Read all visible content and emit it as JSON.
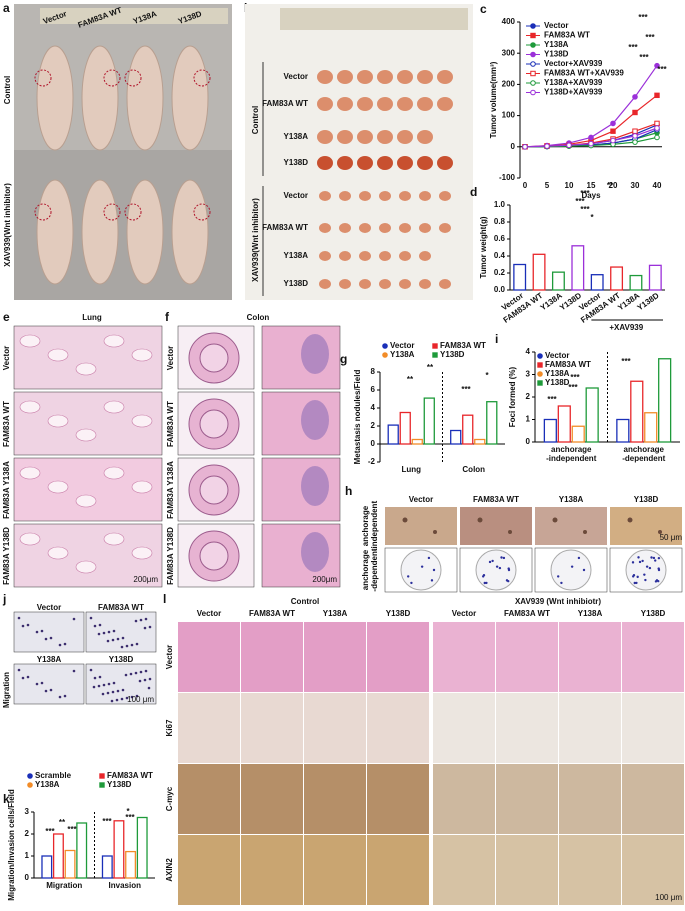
{
  "figure": {
    "a": {
      "letter": "a",
      "labels": [
        "Vector",
        "FAM83A WT",
        "Y138A",
        "Y138D"
      ],
      "rows": [
        "Control",
        "XAV939(Wnt inhibitor)"
      ]
    },
    "b": {
      "letter": "b",
      "groups": [
        "Control",
        "XAV939(Wnt inhibitor)"
      ],
      "rows": [
        "Vector",
        "FAM83A WT",
        "Y138A",
        "Y138D",
        "Vector",
        "FAM83A WT",
        "Y138A",
        "Y138D"
      ]
    },
    "e": {
      "letter": "e",
      "title": "Lung",
      "rows": [
        "Vector",
        "FAM83A WT",
        "FAM83A Y138A",
        "FAM83A Y138D"
      ],
      "scale": "200μm"
    },
    "f": {
      "letter": "f",
      "title": "Colon",
      "rows": [
        "Vector",
        "FAM83A WT",
        "FAM83A Y138A",
        "FAM83A Y138D"
      ],
      "scale": "200μm"
    },
    "h": {
      "letter": "h",
      "columns": [
        "Vector",
        "FAM83A WT",
        "Y138A",
        "Y138D"
      ],
      "rows": [
        [
          "anchorage",
          "-independent"
        ],
        [
          "anchorage",
          "-dependent"
        ]
      ],
      "scale": "50 μm"
    },
    "j": {
      "letter": "j",
      "title": "Migration",
      "labels": [
        "Vector",
        "FAM83A WT",
        "Y138A",
        "Y138D"
      ],
      "scale": "100 μm"
    },
    "l": {
      "letter": "l",
      "groups": [
        "Control",
        "XAV939 (Wnt inhibiotr)"
      ],
      "columns": [
        "Vector",
        "FAM83A WT",
        "Y138A",
        "Y138D"
      ],
      "rows": [
        "Vector",
        "Ki67",
        "C-myc",
        "AXIN2"
      ],
      "scale": "100 μm"
    }
  },
  "chart_data": [
    {
      "panel": "c",
      "type": "line",
      "ylabel": "Tumor volume(mm³)",
      "xlabel": "Days",
      "categories": [
        "0",
        "5",
        "10",
        "15",
        "20",
        "30",
        "40"
      ],
      "ylim": [
        -100,
        400
      ],
      "yticks": [
        -100,
        0,
        100,
        200,
        300,
        400
      ],
      "series": [
        {
          "name": "Vector",
          "color": "#1a2fb8",
          "marker": "filled",
          "values": [
            0,
            2,
            5,
            10,
            20,
            40,
            70
          ]
        },
        {
          "name": "FAM83A WT",
          "color": "#e8262a",
          "marker": "filled",
          "values": [
            0,
            3,
            8,
            20,
            50,
            110,
            165
          ]
        },
        {
          "name": "Y138A",
          "color": "#1e9a3a",
          "marker": "filled",
          "values": [
            0,
            1,
            3,
            6,
            12,
            25,
            45
          ]
        },
        {
          "name": "Y138D",
          "color": "#9b30d9",
          "marker": "filled",
          "values": [
            0,
            4,
            12,
            30,
            75,
            160,
            260
          ]
        },
        {
          "name": "Vector+XAV939",
          "color": "#1a2fb8",
          "marker": "open",
          "values": [
            0,
            1,
            3,
            6,
            12,
            25,
            55
          ]
        },
        {
          "name": "FAM83A WT+XAV939",
          "color": "#e8262a",
          "marker": "open",
          "values": [
            0,
            2,
            5,
            12,
            25,
            50,
            75
          ]
        },
        {
          "name": "Y138A+XAV939",
          "color": "#1e9a3a",
          "marker": "open",
          "values": [
            0,
            1,
            2,
            4,
            8,
            15,
            30
          ]
        },
        {
          "name": "Y138D+XAV939",
          "color": "#9b30d9",
          "marker": "open",
          "values": [
            0,
            2,
            5,
            10,
            20,
            35,
            60
          ]
        }
      ],
      "annotations": [
        "***",
        "***",
        "***",
        "***",
        "***"
      ]
    },
    {
      "panel": "d",
      "type": "bar",
      "ylabel": "Tumor weight(g)",
      "categories": [
        "Vector",
        "FAM83A WT",
        "Y138A",
        "Y138D",
        "Vector",
        "FAM83A WT",
        "Y138A",
        "Y138D"
      ],
      "values": [
        0.3,
        0.42,
        0.21,
        0.52,
        0.18,
        0.27,
        0.17,
        0.29
      ],
      "colors": [
        "#1a2fb8",
        "#e8262a",
        "#1e9a3a",
        "#9b30d9",
        "#1a2fb8",
        "#e8262a",
        "#1e9a3a",
        "#9b30d9"
      ],
      "ylim": [
        0,
        1
      ],
      "yticks": [
        {
          "value": 0,
          "label": "0.0"
        },
        0.2,
        0.4,
        0.6,
        0.8,
        {
          "value": 1,
          "label": "1.0"
        }
      ],
      "group_label": "+XAV939",
      "annotations": [
        "***",
        "***",
        "***",
        "*",
        "**"
      ]
    },
    {
      "panel": "g",
      "type": "bar",
      "ylabel": "Metastasis nodules/Field",
      "categories": [
        "Lung",
        "Colon"
      ],
      "series": [
        {
          "name": "Vector",
          "color": "#1a2fb8",
          "values": [
            2.1,
            1.5
          ]
        },
        {
          "name": "FAM83A WT",
          "color": "#e8262a",
          "values": [
            3.5,
            3.2
          ]
        },
        {
          "name": "Y138A",
          "color": "#f28c28",
          "values": [
            0.5,
            0.5
          ]
        },
        {
          "name": "Y138D",
          "color": "#1e9a3a",
          "values": [
            5.1,
            4.7
          ]
        }
      ],
      "ylim": [
        -2,
        8
      ],
      "yticks": [
        -2,
        0,
        2,
        4,
        6,
        8
      ],
      "annotations": [
        "**",
        "**",
        "***",
        "*"
      ]
    },
    {
      "panel": "i",
      "type": "bar",
      "ylabel": "Foci formed (%)",
      "categories": [
        [
          "anchorage",
          "-independent"
        ],
        [
          "anchorage",
          "-dependent"
        ]
      ],
      "series": [
        {
          "name": "Vector",
          "color": "#1a2fb8",
          "values": [
            1.0,
            1.0
          ]
        },
        {
          "name": "FAM83A WT",
          "color": "#e8262a",
          "values": [
            1.6,
            2.7
          ]
        },
        {
          "name": "Y138A",
          "color": "#f28c28",
          "values": [
            0.7,
            1.3
          ]
        },
        {
          "name": "Y138D",
          "color": "#1e9a3a",
          "values": [
            2.4,
            3.7
          ]
        }
      ],
      "ylim": [
        0,
        4
      ],
      "yticks": [
        0,
        1,
        2,
        3,
        4
      ],
      "annotations": [
        "***",
        "***",
        "***",
        "***"
      ]
    },
    {
      "panel": "k",
      "type": "bar",
      "ylabel": "Migration/Invasion cells/Field",
      "categories": [
        "Migration",
        "Invasion"
      ],
      "series": [
        {
          "name": "Scramble",
          "color": "#1a2fb8",
          "values": [
            1.0,
            1.0
          ]
        },
        {
          "name": "FAM83A WT",
          "color": "#e8262a",
          "values": [
            2.0,
            2.6
          ]
        },
        {
          "name": "Y138A",
          "color": "#f28c28",
          "values": [
            1.25,
            1.2
          ]
        },
        {
          "name": "Y138D",
          "color": "#1e9a3a",
          "values": [
            2.5,
            2.75
          ]
        }
      ],
      "ylim": [
        0,
        3
      ],
      "yticks": [
        0,
        1,
        2,
        3
      ],
      "annotations": [
        "***",
        "**",
        "***",
        "***",
        "***",
        "*"
      ]
    }
  ]
}
